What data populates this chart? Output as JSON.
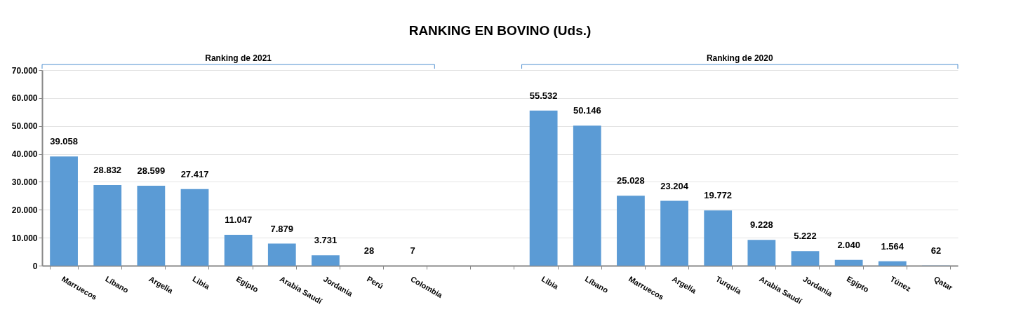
{
  "chart_data": {
    "type": "bar",
    "title": "RANKING EN BOVINO (Uds.)",
    "annotations": [
      "Ranking de 2021",
      "Ranking de 2020"
    ],
    "categories": [
      "Marruecos",
      "Líbano",
      "Argelia",
      "Libia",
      "Egipto",
      "Arabia Saudí",
      "Jordania",
      "Perú",
      "Colombia",
      null,
      null,
      "Libia",
      "Líbano",
      "Marruecos",
      "Argelia",
      "Turquía",
      "Arabia Saudí",
      "Jordania",
      "Egipto",
      "Túnez",
      "Qatar"
    ],
    "values": [
      39058,
      28832,
      28599,
      27417,
      11047,
      7879,
      3731,
      28,
      7,
      null,
      null,
      55532,
      50146,
      25028,
      23204,
      19772,
      9228,
      5222,
      2040,
      1564,
      62
    ],
    "value_labels": [
      "39.058",
      "28.832",
      "28.599",
      "27.417",
      "11.047",
      "7.879",
      "3.731",
      "28",
      "7",
      null,
      null,
      "55.532",
      "50.146",
      "25.028",
      "23.204",
      "19.772",
      "9.228",
      "5.222",
      "2.040",
      "1.564",
      "62"
    ],
    "color": "#5b9bd5",
    "ylim": [
      0,
      70000
    ],
    "yticks": [
      {
        "value": 0,
        "label": "0"
      },
      {
        "value": 10000,
        "label": "10.000"
      },
      {
        "value": 20000,
        "label": "20.000"
      },
      {
        "value": 30000,
        "label": "30.000"
      },
      {
        "value": 40000,
        "label": "40.000"
      },
      {
        "value": 50000,
        "label": "50.000"
      },
      {
        "value": 60000,
        "label": "60.000"
      },
      {
        "value": 70000,
        "label": "70.000"
      }
    ],
    "grid": "y"
  }
}
